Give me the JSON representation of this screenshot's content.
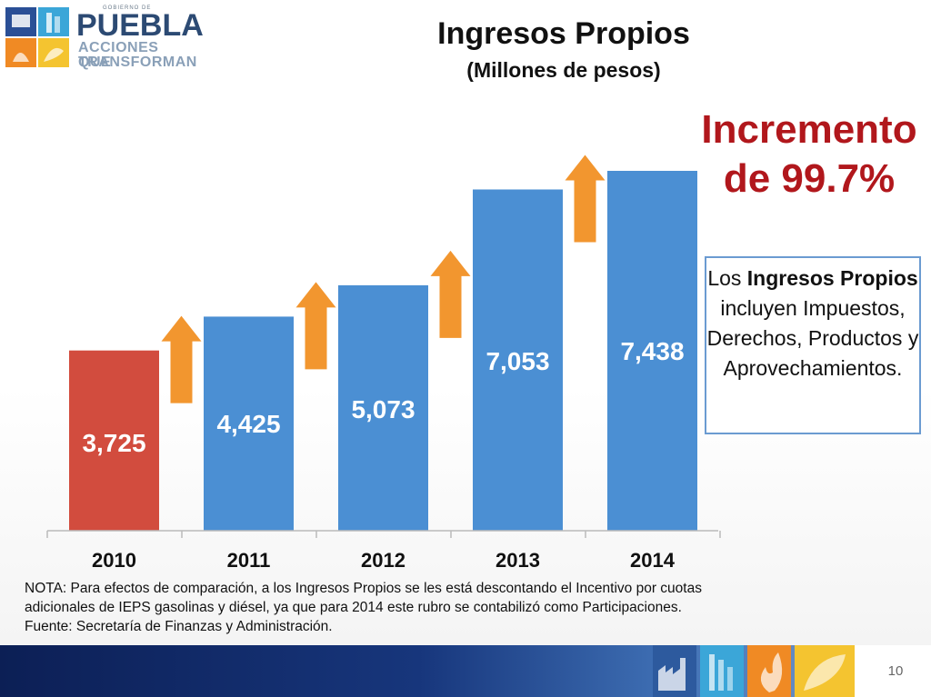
{
  "logo": {
    "small_text": "GOBIERNO DE",
    "main_text": "PUEBLA",
    "tagline_1": "ACCIONES QUE",
    "tagline_2": "TRANSFORMAN"
  },
  "title": "Ingresos Propios",
  "subtitle": "(Millones de pesos)",
  "highlight": {
    "line1": "Incremento",
    "line2": "de 99.7%",
    "color": "#b1171c"
  },
  "info_box": {
    "part1": "Los ",
    "bold": "Ingresos Propios",
    "part2": " incluyen Impuestos, Derechos, Productos y Aprovechamientos."
  },
  "chart_data": {
    "type": "bar",
    "categories": [
      "2010",
      "2011",
      "2012",
      "2013",
      "2014"
    ],
    "values": [
      3725,
      4425,
      5073,
      7053,
      7438
    ],
    "value_labels": [
      "3,725",
      "4,425",
      "5,073",
      "7,053",
      "7,438"
    ],
    "colors": [
      "#d24c3e",
      "#4b8fd3",
      "#4b8fd3",
      "#4b8fd3",
      "#4b8fd3"
    ],
    "ylim": [
      0,
      7438
    ],
    "arrow_color": "#f2962f",
    "arrows_between_bars": 4,
    "grid": false,
    "legend": "none"
  },
  "note": {
    "line1": "NOTA: Para efectos de comparación, a los Ingresos Propios se les está descontando el Incentivo por cuotas",
    "line2": "adicionales de IEPS gasolinas y diésel, ya que para 2014 este rubro se contabilizó como Participaciones.",
    "line3": "Fuente: Secretaría de Finanzas y Administración."
  },
  "footer": {
    "page_number": "10",
    "icon_names": [
      "factory-icon",
      "tower-icon",
      "fire-icon",
      "leaf-icon"
    ]
  }
}
